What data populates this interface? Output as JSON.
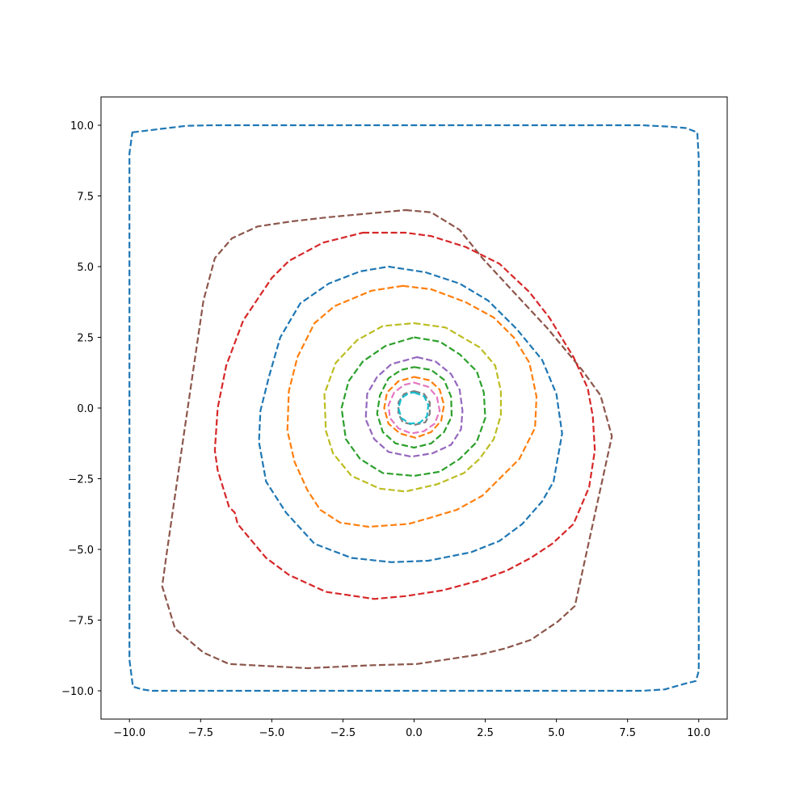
{
  "chart_data": {
    "type": "line",
    "title": "",
    "xlabel": "",
    "ylabel": "",
    "xlim": [
      -11,
      11
    ],
    "ylim": [
      -11,
      11
    ],
    "xticks": [
      -10.0,
      -7.5,
      -5.0,
      -2.5,
      0.0,
      2.5,
      5.0,
      7.5,
      10.0
    ],
    "yticks": [
      -10.0,
      -7.5,
      -5.0,
      -2.5,
      0.0,
      2.5,
      5.0,
      7.5,
      10.0
    ],
    "xtick_labels": [
      "−10.0",
      "−7.5",
      "−5.0",
      "−2.5",
      "0.0",
      "2.5",
      "5.0",
      "7.5",
      "10.0"
    ],
    "ytick_labels": [
      "−10.0",
      "−7.5",
      "−5.0",
      "−2.5",
      "0.0",
      "2.5",
      "5.0",
      "7.5",
      "10.0"
    ],
    "grid": false,
    "line_style": "dashed",
    "series": [
      {
        "color": "#1f77b4",
        "values": [
          [
            -9.9,
            9.75
          ],
          [
            -8,
            9.98
          ],
          [
            -7,
            10
          ],
          [
            8,
            10
          ],
          [
            9,
            9.95
          ],
          [
            9.55,
            9.9
          ],
          [
            9.95,
            9.75
          ],
          [
            10,
            8.8
          ],
          [
            10,
            -9.3
          ],
          [
            9.9,
            -9.65
          ],
          [
            9.5,
            -9.75
          ],
          [
            8.8,
            -9.95
          ],
          [
            8,
            -10
          ],
          [
            -9.2,
            -10
          ],
          [
            -9.55,
            -9.95
          ],
          [
            -9.88,
            -9.85
          ],
          [
            -10,
            -8.9
          ],
          [
            -10,
            9
          ]
        ]
      },
      {
        "color": "#8c564b",
        "values": [
          [
            -0.3,
            7
          ],
          [
            0.6,
            6.92
          ],
          [
            1.6,
            6.3
          ],
          [
            2.4,
            5.3
          ],
          [
            3.5,
            4.1
          ],
          [
            4.7,
            2.8
          ],
          [
            5.9,
            1.35
          ],
          [
            6.55,
            0.45
          ],
          [
            6.95,
            -1
          ],
          [
            5.65,
            -7
          ],
          [
            5.05,
            -7.55
          ],
          [
            4.1,
            -8.2
          ],
          [
            3.2,
            -8.5
          ],
          [
            2.4,
            -8.7
          ],
          [
            0.1,
            -9.05
          ],
          [
            -1.6,
            -9.1
          ],
          [
            -3.75,
            -9.2
          ],
          [
            -6.5,
            -9.05
          ],
          [
            -7.4,
            -8.65
          ],
          [
            -8.4,
            -7.8
          ],
          [
            -8.85,
            -6.3
          ],
          [
            -8.7,
            -5.2
          ],
          [
            -8.1,
            -1
          ],
          [
            -7.4,
            3.8
          ],
          [
            -7,
            5.3
          ],
          [
            -6.4,
            6
          ],
          [
            -5.5,
            6.42
          ],
          [
            -4.3,
            6.6
          ],
          [
            -3,
            6.75
          ]
        ]
      },
      {
        "color": "#d62728",
        "values": [
          [
            -1.8,
            6.2
          ],
          [
            -0.3,
            6.2
          ],
          [
            0.6,
            6.08
          ],
          [
            1.8,
            5.7
          ],
          [
            3,
            5.1
          ],
          [
            4.05,
            4.1
          ],
          [
            4.75,
            3.2
          ],
          [
            5.6,
            1.8
          ],
          [
            6.1,
            0.7
          ],
          [
            6.28,
            -0.3
          ],
          [
            6.35,
            -1.5
          ],
          [
            6.15,
            -2.8
          ],
          [
            5.6,
            -4.1
          ],
          [
            4.85,
            -4.8
          ],
          [
            4.1,
            -5.3
          ],
          [
            3.25,
            -5.75
          ],
          [
            2.3,
            -6.1
          ],
          [
            1,
            -6.45
          ],
          [
            -0.3,
            -6.65
          ],
          [
            -1.4,
            -6.75
          ],
          [
            -3.1,
            -6.5
          ],
          [
            -4.4,
            -5.9
          ],
          [
            -5.2,
            -5.3
          ],
          [
            -6.2,
            -4.1
          ],
          [
            -6.3,
            -3.7
          ],
          [
            -6.5,
            -3.5
          ],
          [
            -6.9,
            -2.2
          ],
          [
            -7,
            -1.5
          ],
          [
            -6.9,
            0
          ],
          [
            -6.6,
            1.5
          ],
          [
            -6,
            3.1
          ],
          [
            -5,
            4.6
          ],
          [
            -4.4,
            5.2
          ],
          [
            -3.2,
            5.85
          ]
        ]
      },
      {
        "color": "#1f77b4",
        "values": [
          [
            -0.9,
            5
          ],
          [
            0.4,
            4.8
          ],
          [
            1.6,
            4.4
          ],
          [
            2.6,
            3.8
          ],
          [
            3.6,
            2.8
          ],
          [
            4.5,
            1.7
          ],
          [
            5.0,
            0.5
          ],
          [
            5.2,
            -0.9
          ],
          [
            4.9,
            -2.6
          ],
          [
            4.5,
            -3.3
          ],
          [
            3.8,
            -4.1
          ],
          [
            3,
            -4.7
          ],
          [
            2,
            -5.1
          ],
          [
            0.5,
            -5.4
          ],
          [
            -0.8,
            -5.45
          ],
          [
            -2.2,
            -5.3
          ],
          [
            -3.5,
            -4.8
          ],
          [
            -4.5,
            -3.7
          ],
          [
            -5.2,
            -2.6
          ],
          [
            -5.45,
            -1.2
          ],
          [
            -5.4,
            -0.1
          ],
          [
            -5.1,
            1.1
          ],
          [
            -4.7,
            2.5
          ],
          [
            -4,
            3.7
          ],
          [
            -3,
            4.4
          ],
          [
            -1.9,
            4.83
          ]
        ]
      },
      {
        "color": "#ff7f0e",
        "values": [
          [
            -0.4,
            4.32
          ],
          [
            0.6,
            4.2
          ],
          [
            1.8,
            3.75
          ],
          [
            2.8,
            3.2
          ],
          [
            3.5,
            2.5
          ],
          [
            4.05,
            1.6
          ],
          [
            4.3,
            0.4
          ],
          [
            4.25,
            -0.7
          ],
          [
            3.7,
            -1.8
          ],
          [
            2.8,
            -2.7
          ],
          [
            2.4,
            -3.1
          ],
          [
            1.5,
            -3.6
          ],
          [
            0.5,
            -3.9
          ],
          [
            -0.2,
            -4.1
          ],
          [
            -1.6,
            -4.2
          ],
          [
            -2.6,
            -4.05
          ],
          [
            -3.3,
            -3.6
          ],
          [
            -3.75,
            -2.9
          ],
          [
            -4.2,
            -1.9
          ],
          [
            -4.45,
            -0.8
          ],
          [
            -4.4,
            0.6
          ],
          [
            -4.1,
            1.8
          ],
          [
            -3.5,
            3
          ],
          [
            -2.8,
            3.6
          ],
          [
            -1.5,
            4.15
          ]
        ]
      },
      {
        "color": "#bcbd22",
        "values": [
          [
            0,
            3
          ],
          [
            1.1,
            2.85
          ],
          [
            2.3,
            2.15
          ],
          [
            2.85,
            1.5
          ],
          [
            3.05,
            0.6
          ],
          [
            3.05,
            -0.25
          ],
          [
            2.8,
            -1.1
          ],
          [
            2.3,
            -1.8
          ],
          [
            1.75,
            -2.3
          ],
          [
            0.8,
            -2.7
          ],
          [
            -0.3,
            -2.95
          ],
          [
            -1.2,
            -2.85
          ],
          [
            -2.2,
            -2.4
          ],
          [
            -2.85,
            -1.6
          ],
          [
            -3.1,
            -0.8
          ],
          [
            -3.15,
            0.5
          ],
          [
            -2.75,
            1.6
          ],
          [
            -2,
            2.4
          ],
          [
            -1.1,
            2.9
          ]
        ]
      },
      {
        "color": "#2ca02c",
        "values": [
          [
            0,
            2.5
          ],
          [
            0.9,
            2.35
          ],
          [
            1.6,
            1.9
          ],
          [
            2.2,
            1.3
          ],
          [
            2.45,
            0.55
          ],
          [
            2.5,
            -0.35
          ],
          [
            2.2,
            -1.2
          ],
          [
            1.6,
            -1.8
          ],
          [
            0.9,
            -2.25
          ],
          [
            0,
            -2.4
          ],
          [
            -1.1,
            -2.3
          ],
          [
            -1.9,
            -1.8
          ],
          [
            -2.4,
            -1.1
          ],
          [
            -2.55,
            0
          ],
          [
            -2.3,
            0.95
          ],
          [
            -1.8,
            1.65
          ],
          [
            -1,
            2.2
          ]
        ]
      },
      {
        "color": "#9467bd",
        "values": [
          [
            0.1,
            1.8
          ],
          [
            0.75,
            1.65
          ],
          [
            1.3,
            1.2
          ],
          [
            1.6,
            0.65
          ],
          [
            1.7,
            -0.1
          ],
          [
            1.65,
            -0.75
          ],
          [
            1.3,
            -1.3
          ],
          [
            0.65,
            -1.6
          ],
          [
            -0.1,
            -1.72
          ],
          [
            -0.9,
            -1.55
          ],
          [
            -1.4,
            -1.1
          ],
          [
            -1.7,
            -0.4
          ],
          [
            -1.65,
            0.5
          ],
          [
            -1.3,
            1.1
          ],
          [
            -0.8,
            1.55
          ]
        ]
      },
      {
        "color": "#2ca02c",
        "values": [
          [
            0,
            1.45
          ],
          [
            0.6,
            1.35
          ],
          [
            1.05,
            1
          ],
          [
            1.3,
            0.4
          ],
          [
            1.32,
            -0.3
          ],
          [
            1.05,
            -0.85
          ],
          [
            0.6,
            -1.25
          ],
          [
            0,
            -1.4
          ],
          [
            -0.65,
            -1.25
          ],
          [
            -1.1,
            -0.85
          ],
          [
            -1.3,
            -0.2
          ],
          [
            -1.2,
            0.45
          ],
          [
            -0.9,
            1.05
          ],
          [
            -0.45,
            1.35
          ]
        ]
      },
      {
        "color": "#ff7f0e",
        "values": [
          [
            0,
            1.1
          ],
          [
            0.55,
            0.98
          ],
          [
            0.9,
            0.65
          ],
          [
            1.05,
            0.1
          ],
          [
            0.95,
            -0.45
          ],
          [
            0.6,
            -0.85
          ],
          [
            0.05,
            -1.05
          ],
          [
            -0.5,
            -0.9
          ],
          [
            -0.9,
            -0.55
          ],
          [
            -1.05,
            0
          ],
          [
            -0.95,
            0.55
          ],
          [
            -0.55,
            0.95
          ]
        ]
      },
      {
        "color": "#e377c2",
        "values": [
          [
            0,
            0.9
          ],
          [
            0.5,
            0.75
          ],
          [
            0.8,
            0.4
          ],
          [
            0.9,
            -0.1
          ],
          [
            0.72,
            -0.55
          ],
          [
            0.35,
            -0.82
          ],
          [
            -0.1,
            -0.9
          ],
          [
            -0.55,
            -0.72
          ],
          [
            -0.85,
            -0.35
          ],
          [
            -0.9,
            0.1
          ],
          [
            -0.7,
            0.55
          ],
          [
            -0.35,
            0.82
          ]
        ]
      },
      {
        "color": "#7f7f7f",
        "values": [
          [
            0,
            0.6
          ],
          [
            0.35,
            0.5
          ],
          [
            0.55,
            0.2
          ],
          [
            0.55,
            -0.2
          ],
          [
            0.4,
            -0.5
          ],
          [
            0,
            -0.6
          ],
          [
            -0.4,
            -0.5
          ],
          [
            -0.55,
            -0.2
          ],
          [
            -0.55,
            0.2
          ],
          [
            -0.35,
            0.5
          ]
        ]
      },
      {
        "color": "#17becf",
        "values": [
          [
            0,
            0.55
          ],
          [
            0.35,
            0.42
          ],
          [
            0.5,
            0.1
          ],
          [
            0.45,
            -0.3
          ],
          [
            0.2,
            -0.52
          ],
          [
            -0.15,
            -0.55
          ],
          [
            -0.45,
            -0.35
          ],
          [
            -0.55,
            0
          ],
          [
            -0.45,
            0.35
          ],
          [
            -0.2,
            0.52
          ]
        ]
      }
    ]
  }
}
